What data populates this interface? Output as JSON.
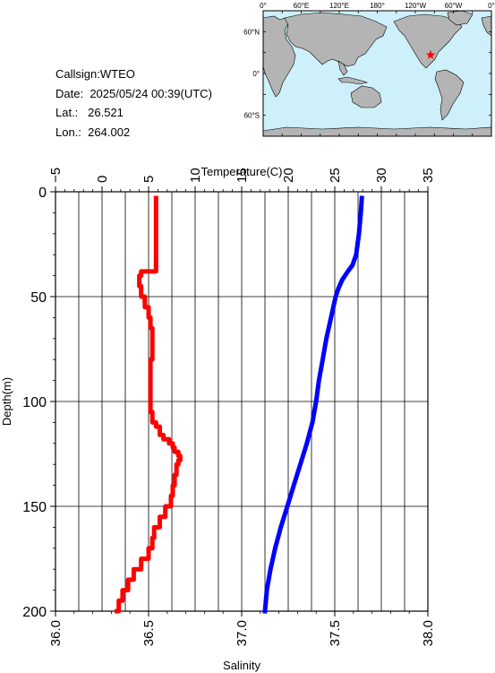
{
  "info": {
    "callsign_label": "Callsign:",
    "callsign": "WTEO",
    "date_label": "Date:",
    "date": "2025/05/24 00:39(UTC)",
    "lat_label": "Lat.:",
    "lat": "26.521",
    "lon_label": "Lon.:",
    "lon": "264.002"
  },
  "map": {
    "lon_ticks": [
      "0°",
      "60°E",
      "120°E",
      "180°",
      "120°W",
      "60°W",
      "0°"
    ],
    "lat_ticks": [
      "60°N",
      "0°",
      "60°S"
    ],
    "ocean_color": "#cdf0fa",
    "land_color": "#b4b4b4",
    "marker_color": "#ff0000",
    "marker_lat": 26.521,
    "marker_lon": 264.002
  },
  "chart_data": {
    "type": "line",
    "grid": true,
    "ylabel": "Depth(m)",
    "top_xlabel": "Temperature(C)",
    "bottom_xlabel": "Salinity",
    "depth_range": [
      0,
      200
    ],
    "depth_ticks": [
      "0",
      "50",
      "100",
      "150",
      "200"
    ],
    "temperature_range": [
      -5,
      35
    ],
    "temperature_ticks": [
      "−5",
      "0",
      "5",
      "10",
      "15",
      "20",
      "25",
      "30",
      "35"
    ],
    "salinity_range": [
      36.0,
      38.0
    ],
    "salinity_ticks": [
      "36.0",
      "36.5",
      "37.0",
      "37.5",
      "38.0"
    ],
    "series": [
      {
        "color": "#ff0000",
        "axis": "salinity",
        "depth": [
          3,
          15,
          30,
          38,
          40,
          45,
          50,
          55,
          60,
          65,
          70,
          80,
          90,
          100,
          105,
          110,
          112,
          116,
          118,
          120,
          122,
          124,
          126,
          128,
          130,
          135,
          140,
          145,
          150,
          155,
          160,
          165,
          170,
          175,
          180,
          185,
          190,
          195,
          200
        ],
        "values": [
          36.54,
          36.54,
          36.54,
          36.46,
          36.45,
          36.46,
          36.48,
          36.5,
          36.51,
          36.52,
          36.52,
          36.51,
          36.51,
          36.51,
          36.52,
          36.54,
          36.56,
          36.58,
          36.61,
          36.63,
          36.64,
          36.66,
          36.67,
          36.66,
          36.65,
          36.64,
          36.63,
          36.62,
          36.59,
          36.56,
          36.53,
          36.52,
          36.5,
          36.46,
          36.42,
          36.39,
          36.36,
          36.34,
          36.33
        ]
      },
      {
        "color": "#0000ff",
        "axis": "temperature",
        "depth": [
          3,
          10,
          20,
          30,
          35,
          38,
          42,
          46,
          50,
          60,
          70,
          80,
          90,
          100,
          110,
          120,
          130,
          140,
          150,
          160,
          170,
          180,
          190,
          200
        ],
        "values": [
          27.9,
          27.8,
          27.6,
          27.3,
          26.9,
          26.4,
          25.8,
          25.4,
          25.1,
          24.6,
          24.1,
          23.7,
          23.3,
          23.0,
          22.6,
          22.0,
          21.3,
          20.6,
          19.9,
          19.2,
          18.6,
          18.1,
          17.7,
          17.5
        ]
      }
    ]
  }
}
